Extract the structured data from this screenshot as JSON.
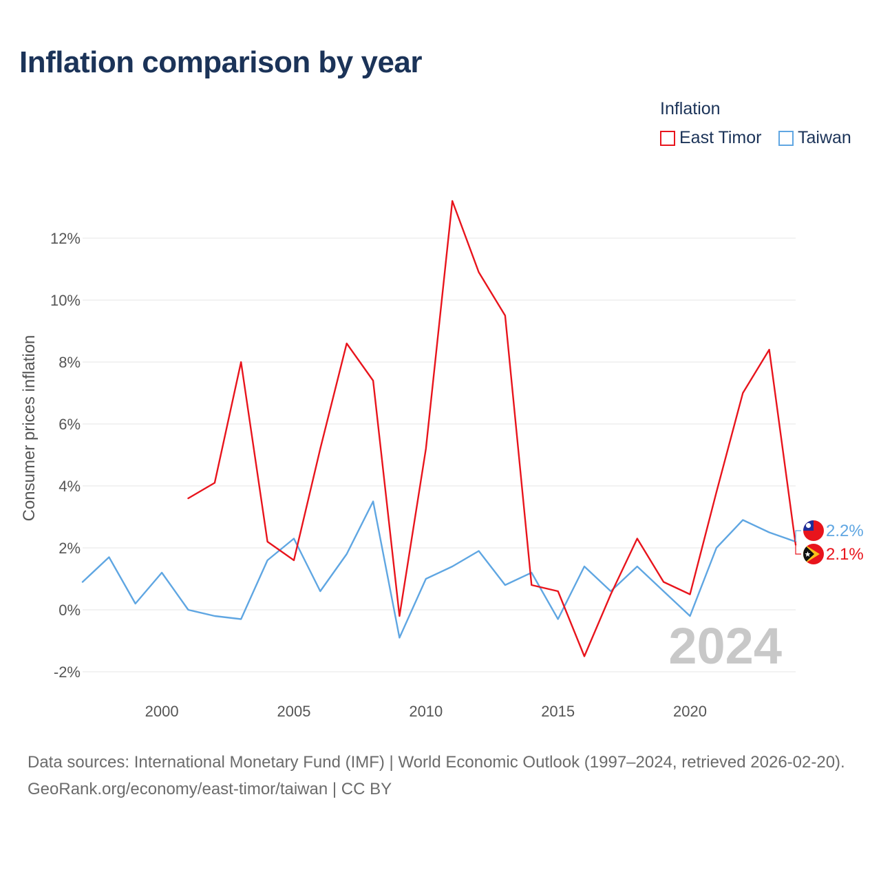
{
  "title": "Inflation comparison by year",
  "legend": {
    "title": "Inflation",
    "items": [
      {
        "name": "East Timor",
        "color": "#e8141c"
      },
      {
        "name": "Taiwan",
        "color": "#5fa6e2"
      }
    ]
  },
  "footer": {
    "sources": "Data sources: International Monetary Fund (IMF) | World Economic Outlook (1997–2024, retrieved 2026-02-20).",
    "credit": "GeoRank.org/economy/east-timor/taiwan | CC BY"
  },
  "chart_data": {
    "type": "line",
    "title": "Inflation comparison by year",
    "xlabel": "",
    "ylabel": "Consumer prices inflation",
    "xlim": [
      1997,
      2024
    ],
    "ylim": [
      -3,
      14
    ],
    "x_ticks": [
      2000,
      2005,
      2010,
      2015,
      2020
    ],
    "y_ticks": [
      -2,
      0,
      2,
      4,
      6,
      8,
      10,
      12
    ],
    "y_tick_labels": [
      "-2%",
      "0%",
      "2%",
      "4%",
      "6%",
      "8%",
      "10%",
      "12%"
    ],
    "grid": true,
    "watermark": "2024",
    "series": [
      {
        "name": "East Timor",
        "color": "#e8141c",
        "end_label": "2.1%",
        "flag": "east-timor-flag",
        "x": [
          2001,
          2002,
          2003,
          2004,
          2005,
          2006,
          2007,
          2008,
          2009,
          2010,
          2011,
          2012,
          2013,
          2014,
          2015,
          2016,
          2017,
          2018,
          2019,
          2020,
          2021,
          2022,
          2023,
          2024
        ],
        "values": [
          3.6,
          4.1,
          8.0,
          2.2,
          1.6,
          5.2,
          8.6,
          7.4,
          -0.2,
          5.2,
          13.2,
          10.9,
          9.5,
          0.8,
          0.6,
          -1.5,
          0.5,
          2.3,
          0.9,
          0.5,
          3.8,
          7.0,
          8.4,
          2.1
        ]
      },
      {
        "name": "Taiwan",
        "color": "#5fa6e2",
        "end_label": "2.2%",
        "flag": "taiwan-flag",
        "x": [
          1997,
          1998,
          1999,
          2000,
          2001,
          2002,
          2003,
          2004,
          2005,
          2006,
          2007,
          2008,
          2009,
          2010,
          2011,
          2012,
          2013,
          2014,
          2015,
          2016,
          2017,
          2018,
          2019,
          2020,
          2021,
          2022,
          2023,
          2024
        ],
        "values": [
          0.9,
          1.7,
          0.2,
          1.2,
          0.0,
          -0.2,
          -0.3,
          1.6,
          2.3,
          0.6,
          1.8,
          3.5,
          -0.9,
          1.0,
          1.4,
          1.9,
          0.8,
          1.2,
          -0.3,
          1.4,
          0.6,
          1.4,
          0.6,
          -0.2,
          2.0,
          2.9,
          2.5,
          2.2
        ]
      }
    ]
  }
}
